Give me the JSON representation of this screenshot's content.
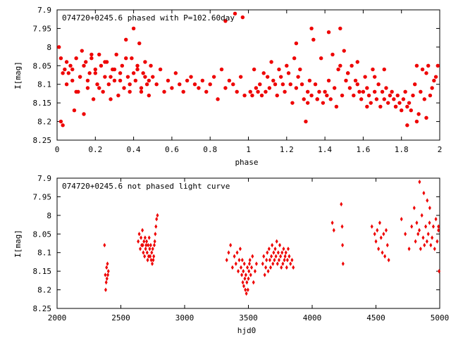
{
  "chart_data": [
    {
      "type": "scatter",
      "title": "074720+0245.6 phased with P=102.60day",
      "xlabel": "phase",
      "ylabel": "I[mag]",
      "xlim": [
        0,
        2
      ],
      "ylim": [
        7.9,
        8.25
      ],
      "y_inverted": true,
      "grid": false,
      "color": "#ee0000",
      "marker": "filled-circle",
      "x_ticks": [
        "0",
        "0.2",
        "0.4",
        "0.6",
        "0.8",
        "1",
        "1.2",
        "1.4",
        "1.6",
        "1.8",
        "2"
      ],
      "y_ticks": [
        "7.9",
        "7.95",
        "8",
        "8.05",
        "8.1",
        "8.15",
        "8.2",
        "8.25"
      ],
      "series": [
        {
          "x": [
            0.01,
            0.02,
            0.03,
            0.04,
            0.05,
            0.06,
            0.07,
            0.08,
            0.09,
            0.1,
            0.11,
            0.12,
            0.13,
            0.14,
            0.15,
            0.16,
            0.17,
            0.18,
            0.19,
            0.2,
            0.21,
            0.22,
            0.23,
            0.24,
            0.25,
            0.26,
            0.27,
            0.28,
            0.29,
            0.3,
            0.31,
            0.32,
            0.33,
            0.34,
            0.35,
            0.36,
            0.37,
            0.38,
            0.39,
            0.4,
            0.41,
            0.42,
            0.43,
            0.44,
            0.45,
            0.46,
            0.47,
            0.48,
            0.49,
            0.5,
            0.52,
            0.54,
            0.56,
            0.58,
            0.6,
            0.62,
            0.64,
            0.66,
            0.68,
            0.7,
            0.72,
            0.74,
            0.76,
            0.78,
            0.8,
            0.82,
            0.84,
            0.86,
            0.88,
            0.9,
            0.92,
            0.94,
            0.96,
            0.98,
            0.02,
            0.03,
            0.05,
            0.08,
            0.1,
            0.12,
            0.14,
            0.16,
            0.18,
            0.2,
            0.22,
            0.25,
            0.28,
            0.3,
            0.33,
            0.36,
            0.38,
            0.4,
            0.42,
            0.44,
            0.46,
            0.48,
            0.88,
            0.93,
            0.97
          ],
          "y": [
            8.0,
            8.2,
            8.21,
            8.06,
            8.04,
            8.07,
            8.05,
            8.09,
            8.17,
            8.03,
            8.12,
            8.08,
            8.01,
            8.18,
            8.04,
            8.11,
            8.07,
            8.03,
            8.14,
            8.06,
            8.1,
            8.02,
            8.05,
            8.12,
            8.08,
            8.04,
            8.1,
            8.14,
            8.06,
            8.09,
            8.02,
            8.13,
            8.07,
            8.05,
            8.11,
            7.98,
            8.08,
            8.12,
            8.03,
            7.95,
            8.09,
            8.06,
            7.99,
            8.12,
            8.07,
            8.04,
            8.1,
            8.13,
            8.05,
            8.08,
            8.1,
            8.06,
            8.12,
            8.09,
            8.11,
            8.07,
            8.1,
            8.12,
            8.09,
            8.08,
            8.1,
            8.11,
            8.09,
            8.12,
            8.1,
            8.08,
            8.14,
            8.06,
            8.11,
            8.09,
            8.1,
            8.12,
            8.08,
            8.13,
            8.03,
            8.07,
            8.1,
            8.06,
            8.12,
            8.08,
            8.05,
            8.09,
            8.02,
            8.07,
            8.11,
            8.04,
            8.08,
            8.06,
            8.09,
            8.03,
            8.1,
            8.07,
            8.05,
            8.11,
            8.08,
            8.09,
            7.93,
            7.91,
            7.92
          ]
        },
        {
          "x": [
            1.01,
            1.02,
            1.03,
            1.04,
            1.05,
            1.06,
            1.07,
            1.08,
            1.09,
            1.1,
            1.11,
            1.12,
            1.13,
            1.14,
            1.15,
            1.16,
            1.17,
            1.18,
            1.19,
            1.2,
            1.21,
            1.22,
            1.23,
            1.24,
            1.25,
            1.26,
            1.27,
            1.28,
            1.29,
            1.3,
            1.31,
            1.32,
            1.33,
            1.34,
            1.35,
            1.36,
            1.37,
            1.38,
            1.39,
            1.4,
            1.41,
            1.42,
            1.43,
            1.44,
            1.45,
            1.46,
            1.47,
            1.48,
            1.49,
            1.5,
            1.51,
            1.52,
            1.53,
            1.54,
            1.55,
            1.56,
            1.57,
            1.58,
            1.59,
            1.6,
            1.61,
            1.62,
            1.63,
            1.64,
            1.65,
            1.66,
            1.67,
            1.68,
            1.69,
            1.7,
            1.71,
            1.72,
            1.73,
            1.74,
            1.75,
            1.76,
            1.77,
            1.78,
            1.79,
            1.8,
            1.81,
            1.82,
            1.83,
            1.84,
            1.85,
            1.86,
            1.87,
            1.88,
            1.89,
            1.9,
            1.91,
            1.92,
            1.93,
            1.94,
            1.95,
            1.96,
            1.97,
            1.98,
            1.99,
            1.25,
            1.31,
            1.33,
            1.36,
            1.42,
            1.48,
            1.52,
            1.57,
            1.62,
            1.66,
            1.71,
            1.77,
            1.83,
            1.88,
            1.93
          ],
          "y": [
            8.12,
            8.13,
            8.06,
            8.11,
            8.12,
            8.1,
            8.13,
            8.07,
            8.12,
            8.08,
            8.11,
            8.04,
            8.09,
            8.1,
            8.13,
            8.06,
            8.08,
            8.1,
            8.12,
            8.05,
            8.07,
            8.1,
            8.15,
            8.03,
            8.11,
            8.08,
            8.06,
            8.1,
            8.14,
            8.2,
            8.12,
            8.09,
            8.13,
            7.98,
            8.1,
            8.14,
            8.12,
            8.03,
            8.15,
            8.12,
            8.13,
            8.09,
            8.14,
            8.02,
            8.11,
            8.16,
            8.06,
            8.05,
            8.13,
            8.01,
            8.09,
            8.07,
            8.11,
            8.05,
            8.13,
            8.09,
            8.1,
            8.12,
            8.14,
            8.12,
            8.08,
            8.11,
            8.13,
            8.15,
            8.06,
            8.12,
            8.14,
            8.1,
            8.16,
            8.12,
            8.14,
            8.11,
            8.15,
            8.13,
            8.12,
            8.14,
            8.16,
            8.13,
            8.15,
            8.17,
            8.14,
            8.12,
            8.16,
            8.15,
            8.17,
            8.13,
            8.1,
            8.05,
            8.18,
            8.12,
            8.06,
            8.14,
            8.19,
            8.05,
            8.13,
            8.11,
            8.09,
            8.08,
            8.05,
            7.99,
            8.15,
            7.95,
            8.14,
            7.96,
            7.95,
            8.07,
            8.04,
            8.16,
            8.08,
            8.06,
            8.16,
            8.21,
            8.2,
            8.07
          ]
        }
      ]
    },
    {
      "type": "scatter",
      "title": "074720+0245.6 not phased light curve",
      "xlabel": "hjd0",
      "ylabel": "I[mag]",
      "xlim": [
        2000,
        5000
      ],
      "ylim": [
        7.9,
        8.25
      ],
      "y_inverted": true,
      "grid": false,
      "color": "#ee0000",
      "marker": "filled-diamond",
      "x_ticks": [
        "2000",
        "2500",
        "3000",
        "3500",
        "4000",
        "4500",
        "5000"
      ],
      "y_ticks": [
        "7.9",
        "7.95",
        "8",
        "8.05",
        "8.1",
        "8.15",
        "8.2",
        "8.25"
      ],
      "series": [
        {
          "x": [
            2372,
            2378,
            2381,
            2385,
            2388,
            2391,
            2395,
            2398,
            2402,
            2636,
            2644,
            2652,
            2658,
            2663,
            2669,
            2672,
            2676,
            2681,
            2686,
            2690,
            2694,
            2698,
            2702,
            2706,
            2710,
            2714,
            2718,
            2722,
            2726,
            2730,
            2734,
            2738,
            2742,
            2746,
            2750,
            2754,
            2758,
            2762,
            2766,
            2770,
            2775,
            2780,
            2787,
            3330,
            3345,
            3360,
            3375,
            3390,
            3402,
            3412,
            3420,
            3428,
            3436,
            3442,
            3448,
            3452,
            3456,
            3460,
            3464,
            3468,
            3472,
            3476,
            3480,
            3484,
            3488,
            3492,
            3496,
            3500,
            3504,
            3508,
            3512,
            3518,
            3525,
            3532,
            3540,
            3552,
            3563,
            3612,
            3620,
            3628,
            3636,
            3642,
            3648,
            3655,
            3662,
            3668,
            3674,
            3680,
            3686,
            3692,
            3698,
            3704,
            3710,
            3716,
            3722,
            3728,
            3734,
            3740,
            3746,
            3752,
            3758,
            3764,
            3770,
            3776,
            3782,
            3788,
            3794,
            3800,
            3806,
            3812,
            3820,
            3830,
            3842,
            3852,
            4158,
            4170,
            4228,
            4235,
            4238,
            4242,
            4468,
            4490,
            4500,
            4510,
            4520,
            4530,
            4540,
            4550,
            4560,
            4570,
            4580,
            4590,
            4600,
            4700,
            4730,
            4760,
            4780,
            4800,
            4810,
            4820,
            4830,
            4840,
            4850,
            4860,
            4870,
            4880,
            4890,
            4900,
            4910,
            4920,
            4930,
            4940,
            4950,
            4960,
            4970,
            4980,
            4990,
            4995,
            4990,
            4842,
            4875,
            4902,
            4922
          ],
          "y": [
            8.08,
            8.16,
            8.2,
            8.18,
            8.14,
            8.17,
            8.13,
            8.16,
            8.15,
            8.07,
            8.05,
            8.09,
            8.06,
            8.08,
            8.04,
            8.08,
            8.1,
            8.07,
            8.11,
            8.06,
            8.09,
            8.08,
            8.07,
            8.1,
            8.12,
            8.08,
            8.11,
            8.06,
            8.09,
            8.11,
            8.08,
            8.12,
            8.1,
            8.13,
            8.09,
            8.12,
            8.11,
            8.08,
            8.07,
            8.05,
            8.03,
            8.01,
            8.0,
            8.12,
            8.1,
            8.08,
            8.14,
            8.11,
            8.13,
            8.1,
            8.15,
            8.12,
            8.09,
            8.14,
            8.16,
            8.12,
            8.18,
            8.15,
            8.19,
            8.13,
            8.17,
            8.2,
            8.16,
            8.21,
            8.18,
            8.14,
            8.2,
            8.17,
            8.15,
            8.13,
            8.12,
            8.16,
            8.14,
            8.11,
            8.18,
            8.15,
            8.13,
            8.13,
            8.11,
            8.16,
            8.14,
            8.12,
            8.1,
            8.15,
            8.09,
            8.12,
            8.14,
            8.11,
            8.08,
            8.13,
            8.1,
            8.12,
            8.09,
            8.11,
            8.07,
            8.13,
            8.1,
            8.12,
            8.08,
            8.11,
            8.14,
            8.1,
            8.13,
            8.09,
            8.12,
            8.11,
            8.1,
            8.14,
            8.12,
            8.09,
            8.11,
            8.13,
            8.12,
            8.14,
            8.02,
            8.04,
            7.97,
            8.03,
            8.08,
            8.13,
            8.03,
            8.05,
            8.07,
            8.04,
            8.09,
            8.02,
            8.06,
            8.1,
            8.05,
            8.11,
            8.04,
            8.08,
            8.12,
            8.01,
            8.05,
            8.09,
            8.03,
            7.98,
            8.07,
            8.02,
            8.05,
            8.04,
            8.09,
            8.0,
            8.06,
            8.08,
            8.03,
            8.07,
            8.05,
            8.02,
            8.08,
            8.06,
            8.03,
            8.09,
            8.01,
            8.07,
            8.04,
            8.15,
            8.03,
            7.91,
            7.94,
            7.96,
            7.98
          ]
        }
      ]
    }
  ]
}
